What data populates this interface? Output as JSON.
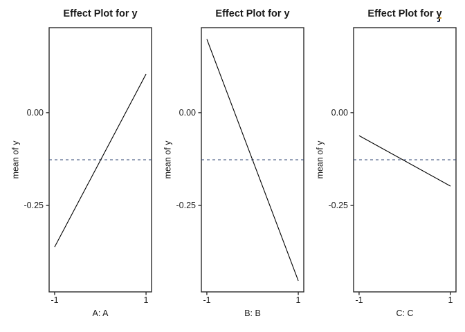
{
  "figure": {
    "background": "#ffffff",
    "axis_color": "#2b2b2b",
    "text_color": "#1a1a1a",
    "effect_line_color": "#000000",
    "mean_line_color": "#2e4372"
  },
  "chart_data": [
    {
      "type": "line",
      "title": "Effect Plot for y",
      "xlabel": "A: A",
      "ylabel": "mean of y",
      "x": [
        -1,
        1
      ],
      "values": [
        -0.362,
        0.104
      ],
      "mean_line": -0.127,
      "xlim": [
        -1.12,
        1.12
      ],
      "ylim": [
        -0.483,
        0.229
      ],
      "xticks": [
        -1,
        1
      ],
      "xtick_labels": [
        "-1",
        "1"
      ],
      "yticks": [
        0,
        -0.25
      ],
      "ytick_labels": [
        "0.00",
        "-0.25"
      ],
      "grid": false,
      "legend": null,
      "mean_line_style": "dashed"
    },
    {
      "type": "line",
      "title": "Effect Plot for y",
      "xlabel": "B: B",
      "ylabel": "mean of y",
      "x": [
        -1,
        1
      ],
      "values": [
        0.198,
        -0.453
      ],
      "mean_line": -0.127,
      "xlim": [
        -1.12,
        1.12
      ],
      "ylim": [
        -0.483,
        0.229
      ],
      "xticks": [
        -1,
        1
      ],
      "xtick_labels": [
        "-1",
        "1"
      ],
      "yticks": [
        0,
        -0.25
      ],
      "ytick_labels": [
        "0.00",
        "-0.25"
      ],
      "grid": false,
      "legend": null,
      "mean_line_style": "dashed"
    },
    {
      "type": "line",
      "title": "Effect Plot for y",
      "xlabel": "C: C",
      "ylabel": "mean of y",
      "x": [
        -1,
        1
      ],
      "values": [
        -0.062,
        -0.198
      ],
      "mean_line": -0.127,
      "xlim": [
        -1.12,
        1.12
      ],
      "ylim": [
        -0.483,
        0.229
      ],
      "xticks": [
        -1,
        1
      ],
      "xtick_labels": [
        "-1",
        "1"
      ],
      "yticks": [
        0,
        -0.25
      ],
      "ytick_labels": [
        "0.00",
        "-0.25"
      ],
      "grid": false,
      "legend": null,
      "mean_line_style": "dashed"
    }
  ]
}
